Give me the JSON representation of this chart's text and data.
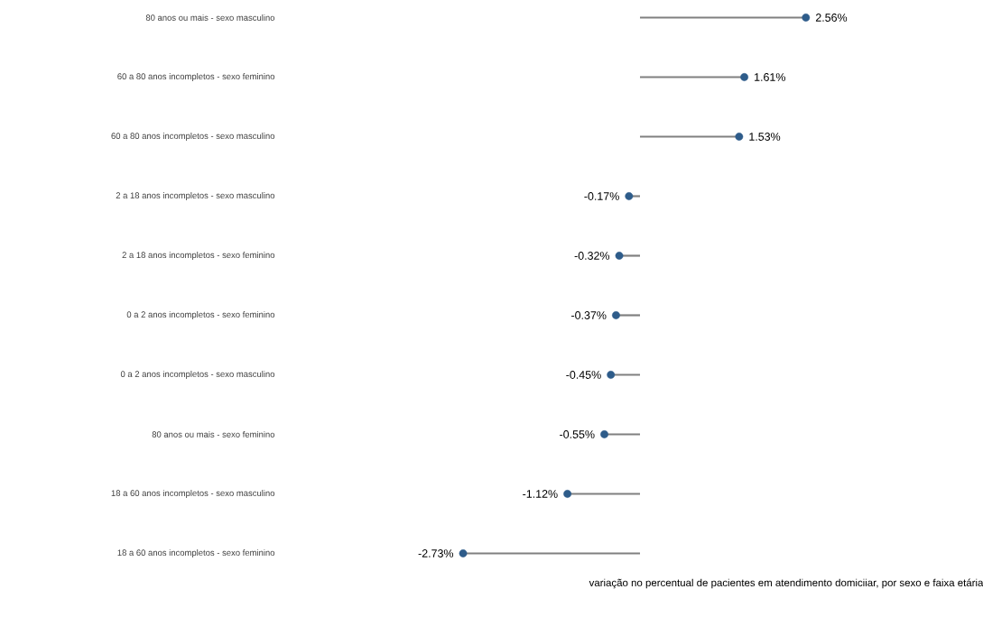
{
  "chart_data": {
    "type": "lollipop",
    "orientation": "horizontal",
    "categories": [
      "80 anos ou mais - sexo masculino",
      "60 a 80 anos incompletos - sexo feminino",
      "60 a 80 anos incompletos - sexo masculino",
      "2 a 18 anos incompletos - sexo masculino",
      "2 a 18 anos incompletos - sexo feminino",
      "0 a 2 anos incompletos - sexo feminino",
      "0 a 2 anos incompletos - sexo masculino",
      "80 anos ou mais - sexo feminino",
      "18 a 60 anos incompletos - sexo masculino",
      "18 a 60 anos incompletos - sexo feminino"
    ],
    "values": [
      2.56,
      1.61,
      1.53,
      -0.17,
      -0.32,
      -0.37,
      -0.45,
      -0.55,
      -1.12,
      -2.73
    ],
    "value_labels": [
      "2.56%",
      "1.61%",
      "1.53%",
      "-0.17%",
      "-0.32%",
      "-0.37%",
      "-0.45%",
      "-0.55%",
      "-1.12%",
      "-2.73%"
    ],
    "color": "#2e5c8a",
    "xlabel": "variação no percentual de pacientes em atendimento domiciiar, por sexo e faixa etária"
  }
}
